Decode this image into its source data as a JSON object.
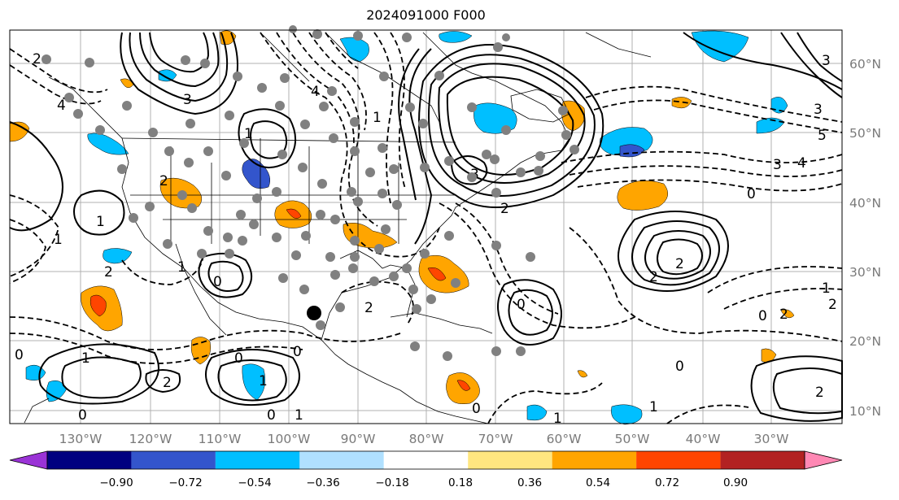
{
  "title": "2024091000 F000",
  "map": {
    "lon_labels": [
      "130°W",
      "120°W",
      "110°W",
      "100°W",
      "90°W",
      "80°W",
      "70°W",
      "60°W",
      "50°W",
      "40°W",
      "30°W"
    ],
    "lat_labels": [
      "60°N",
      "50°N",
      "40°N",
      "30°N",
      "20°N",
      "10°N"
    ]
  },
  "colorbar": {
    "ticks": [
      "−0.90",
      "−0.72",
      "−0.54",
      "−0.36",
      "−0.18",
      "0.18",
      "0.36",
      "0.54",
      "0.72",
      "0.90"
    ],
    "colors": [
      "#9a33d6",
      "#000080",
      "#3355cc",
      "#00bfff",
      "#b0e0ff",
      "#ffffff",
      "#ffe680",
      "#ffa500",
      "#ff4500",
      "#b22222",
      "#ff88b4"
    ]
  },
  "colors": {
    "contour": "#000000",
    "station_marker": "#808080",
    "storm_marker": "#000000",
    "positive_shading": "#ffa500",
    "negative_shading": "#00bfff"
  }
}
